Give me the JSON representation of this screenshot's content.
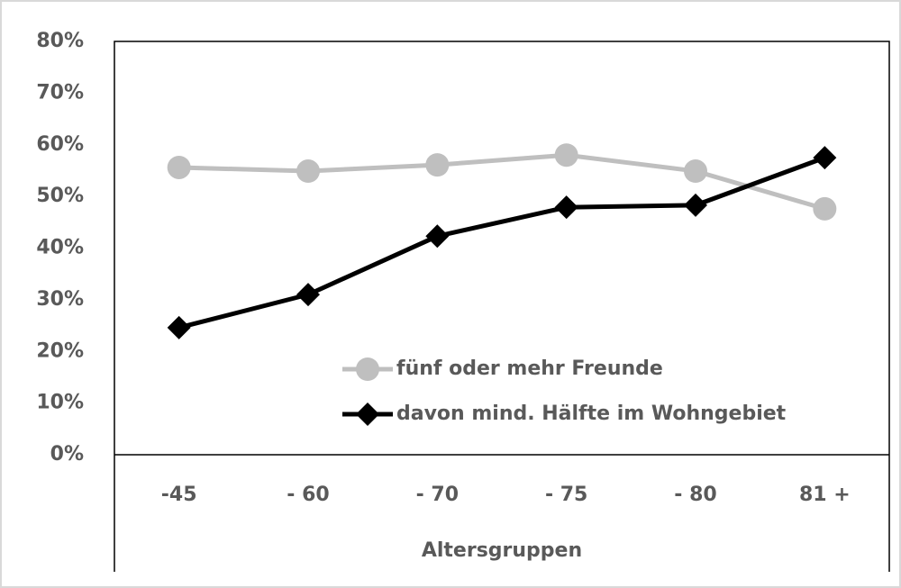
{
  "chart_data": {
    "type": "line",
    "x_label": "Altersgruppen",
    "categories": [
      "-45",
      "- 60",
      "- 70",
      "- 75",
      "- 80",
      "81 +"
    ],
    "series": [
      {
        "name": "fünf oder mehr Freunde",
        "color": "#bfbfbf",
        "marker": "circle",
        "values": [
          55.6,
          54.9,
          56.1,
          58,
          54.9,
          47.6
        ]
      },
      {
        "name": "davon mind. Hälfte im Wohngebiet",
        "color": "#000000",
        "marker": "diamond",
        "values": [
          24.6,
          31,
          42.3,
          47.9,
          48.3,
          57.5
        ]
      }
    ],
    "ylim": [
      0,
      80
    ],
    "yticks": [
      {
        "value": 0,
        "label": "0%"
      },
      {
        "value": 10,
        "label": "10%"
      },
      {
        "value": 20,
        "label": "20%"
      },
      {
        "value": 30,
        "label": "30%"
      },
      {
        "value": 40,
        "label": "40%"
      },
      {
        "value": 50,
        "label": "50%"
      },
      {
        "value": 60,
        "label": "60%"
      },
      {
        "value": 70,
        "label": "70%"
      },
      {
        "value": 80,
        "label": "80%"
      }
    ]
  }
}
